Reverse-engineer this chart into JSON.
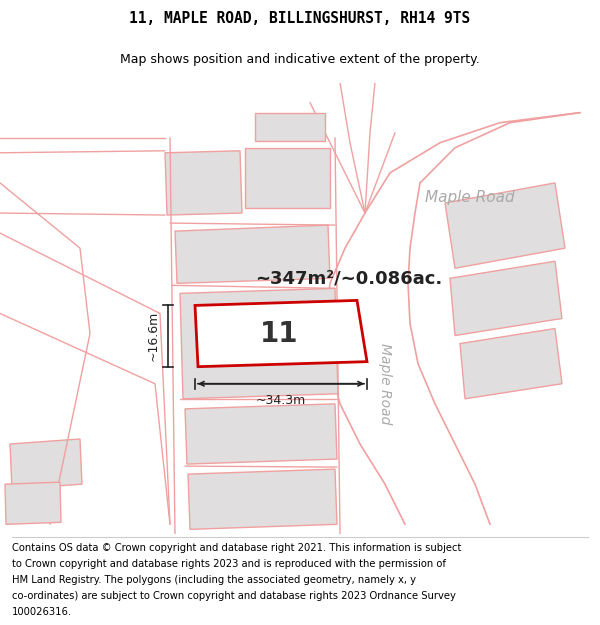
{
  "title_line1": "11, MAPLE ROAD, BILLINGSHURST, RH14 9TS",
  "title_line2": "Map shows position and indicative extent of the property.",
  "area_text": "~347m²/~0.086ac.",
  "property_number": "11",
  "dim_width": "~34.3m",
  "dim_height": "~16.6m",
  "map_bg": "#f7f5f5",
  "property_fill": "#ffffff",
  "property_edge": "#cc0000",
  "road_label_upper": "Maple Road",
  "road_label_lower": "Maple Road",
  "road_label_color": "#aaaaaa",
  "line_color": "#f0a0a0",
  "gray_fill": "#e0dede",
  "title_fontsize": 10.5,
  "footer_fontsize": 7.2,
  "footer_lines": [
    "Contains OS data © Crown copyright and database right 2021. This information is subject",
    "to Crown copyright and database rights 2023 and is reproduced with the permission of",
    "HM Land Registry. The polygons (including the associated geometry, namely x, y",
    "co-ordinates) are subject to Crown copyright and database rights 2023 Ordnance Survey",
    "100026316."
  ]
}
